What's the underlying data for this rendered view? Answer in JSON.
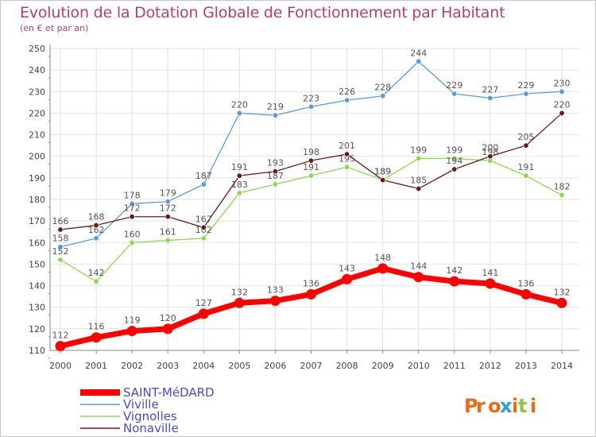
{
  "chart_data": {
    "type": "line",
    "title": "Evolution de la Dotation Globale de Fonctionnement par Habitant",
    "subtitle": "(en € et par an)",
    "xlabel": "",
    "ylabel": "",
    "x": [
      "2000",
      "2001",
      "2002",
      "2003",
      "2004",
      "2005",
      "2006",
      "2007",
      "2008",
      "2009",
      "2010",
      "2011",
      "2012",
      "2013",
      "2014"
    ],
    "ylim": [
      110,
      250
    ],
    "yticks": [
      110,
      120,
      130,
      140,
      150,
      160,
      170,
      180,
      190,
      200,
      210,
      220,
      230,
      240,
      250
    ],
    "grid": true,
    "legend_position": "bottom-left",
    "series": [
      {
        "name": "SAINT-MéDARD",
        "color": "#ff0000",
        "values": [
          112,
          116,
          119,
          120,
          127,
          132,
          133,
          136,
          143,
          148,
          144,
          142,
          141,
          136,
          132
        ]
      },
      {
        "name": "Viville",
        "color": "#5b9bd5",
        "values": [
          158,
          162,
          178,
          179,
          187,
          220,
          219,
          223,
          226,
          228,
          244,
          229,
          227,
          229,
          230
        ]
      },
      {
        "name": "Vignolles",
        "color": "#8fd651",
        "values": [
          152,
          142,
          160,
          161,
          162,
          183,
          187,
          191,
          195,
          189,
          199,
          199,
          198,
          191,
          182
        ]
      },
      {
        "name": "Nonaville",
        "color": "#6b1a1a",
        "values": [
          166,
          168,
          172,
          172,
          167,
          191,
          193,
          198,
          201,
          189,
          185,
          194,
          200,
          205,
          220
        ]
      }
    ]
  },
  "logo": {
    "text": "Proxiti"
  }
}
